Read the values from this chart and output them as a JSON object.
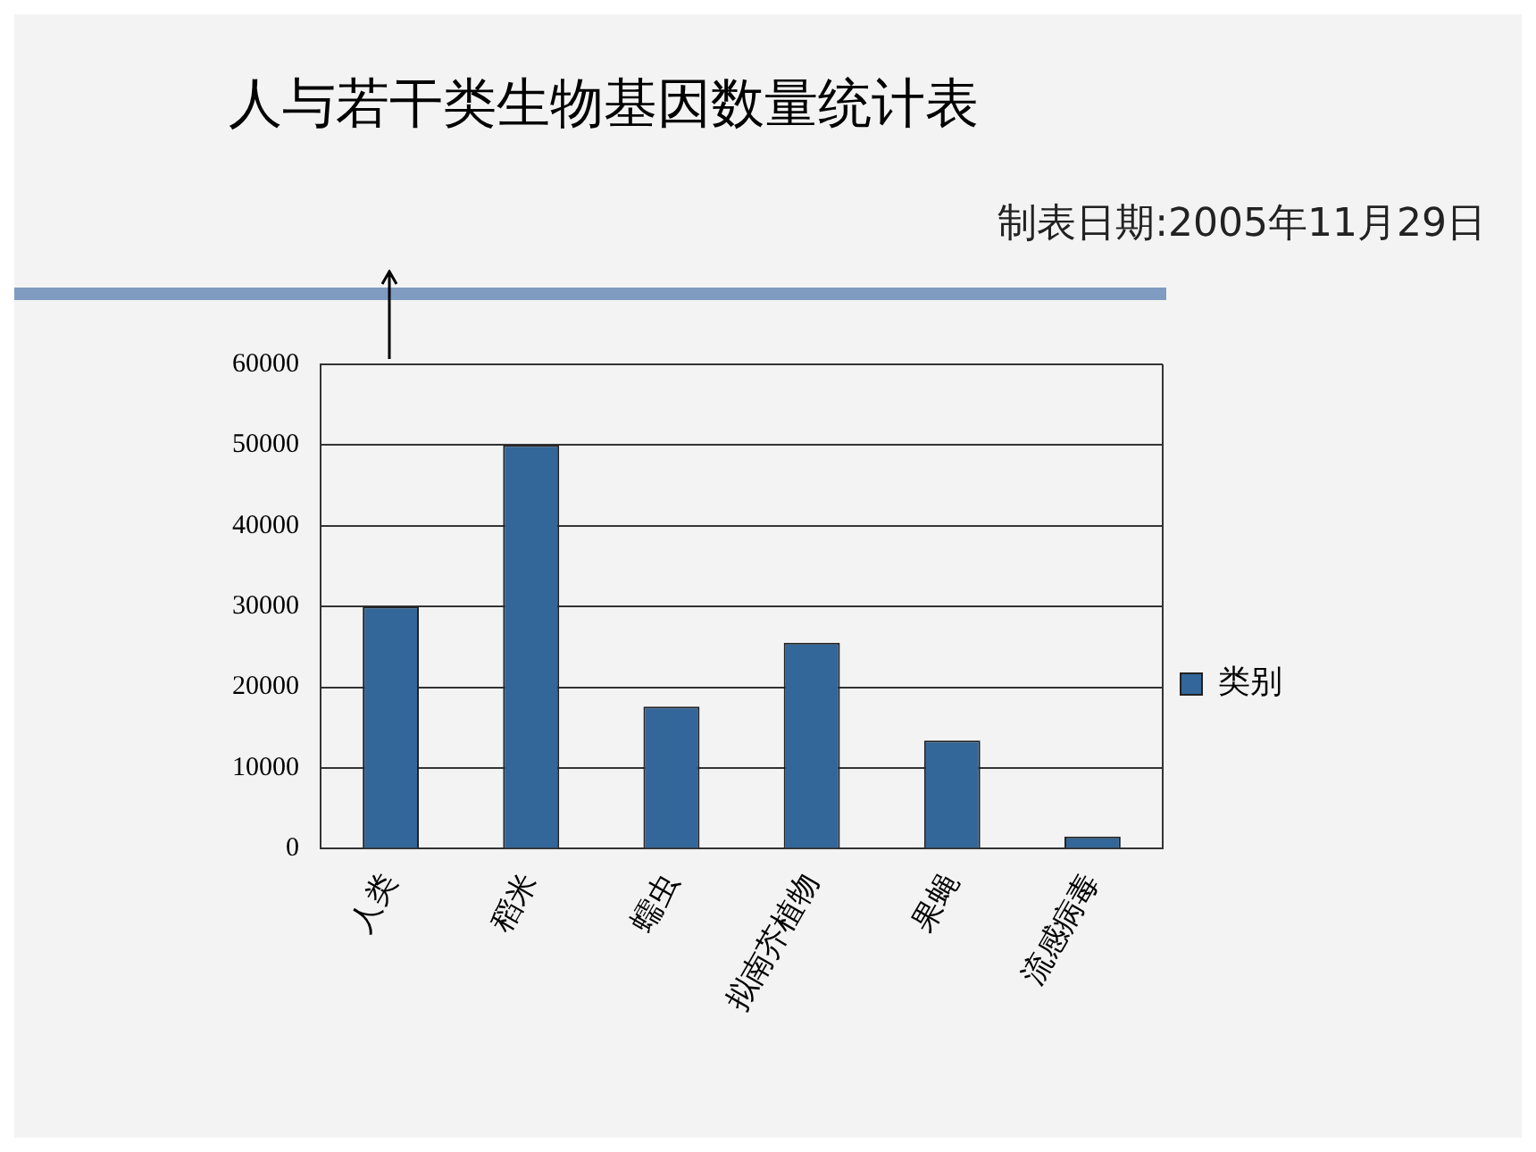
{
  "chart_data": {
    "type": "bar",
    "title": "人与若干类生物基因数量统计表",
    "subtitle": "制表日期:2005年11月29日",
    "categories": [
      "人类",
      "稻米",
      "蠕虫",
      "拟南芥植物",
      "果蝇",
      "流感病毒"
    ],
    "series": [
      {
        "name": "类别",
        "color": "#336699",
        "values": [
          30000,
          50000,
          17600,
          25500,
          13400,
          1500
        ]
      }
    ],
    "ylim": [
      0,
      60000
    ],
    "yticks": [
      0,
      10000,
      20000,
      30000,
      40000,
      50000,
      60000
    ],
    "grid": "y",
    "legend": "right"
  }
}
